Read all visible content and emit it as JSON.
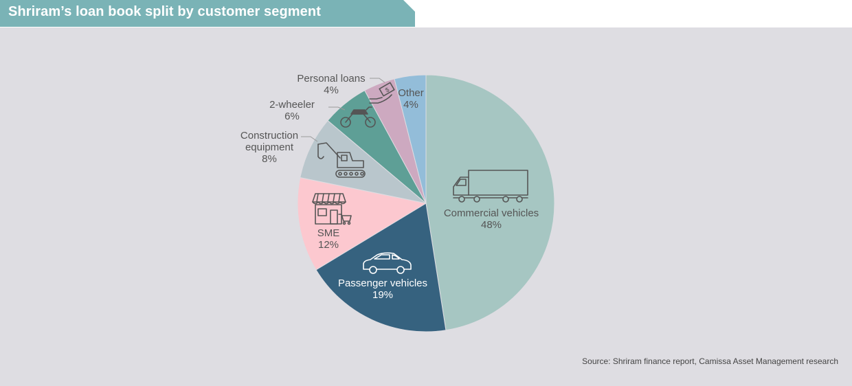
{
  "chart_data": {
    "type": "pie",
    "title": "Shriram’s loan book split by customer segment",
    "slices": [
      {
        "name_lines": [
          "Commercial vehicles"
        ],
        "pct_label": "48%",
        "value": 48,
        "color": "#a6c6c2",
        "text_color": "#555555",
        "icon": "truck-icon"
      },
      {
        "name_lines": [
          "Passenger vehicles"
        ],
        "pct_label": "19%",
        "value": 19,
        "color": "#36627f",
        "text_color": "#ffffff",
        "icon": "car-icon"
      },
      {
        "name_lines": [
          "SME"
        ],
        "pct_label": "12%",
        "value": 12,
        "color": "#fcc8cf",
        "text_color": "#555555",
        "icon": "shop-icon"
      },
      {
        "name_lines": [
          "Construction",
          "equipment"
        ],
        "pct_label": "8%",
        "value": 8,
        "color": "#b9c6cc",
        "text_color": "#555555",
        "icon": "excavator-icon"
      },
      {
        "name_lines": [
          "2-wheeler"
        ],
        "pct_label": "6%",
        "value": 6,
        "color": "#5e9f96",
        "text_color": "#555555",
        "icon": "motorcycle-icon"
      },
      {
        "name_lines": [
          "Personal loans"
        ],
        "pct_label": "4%",
        "value": 4,
        "color": "#cda9c0",
        "text_color": "#555555",
        "icon": "money-hand-icon"
      },
      {
        "name_lines": [
          "Other"
        ],
        "pct_label": "4%",
        "value": 4,
        "color": "#93bdd9",
        "text_color": "#555555",
        "icon": ""
      }
    ],
    "source": "Source: Shriram finance report, Camissa Asset Management research"
  }
}
